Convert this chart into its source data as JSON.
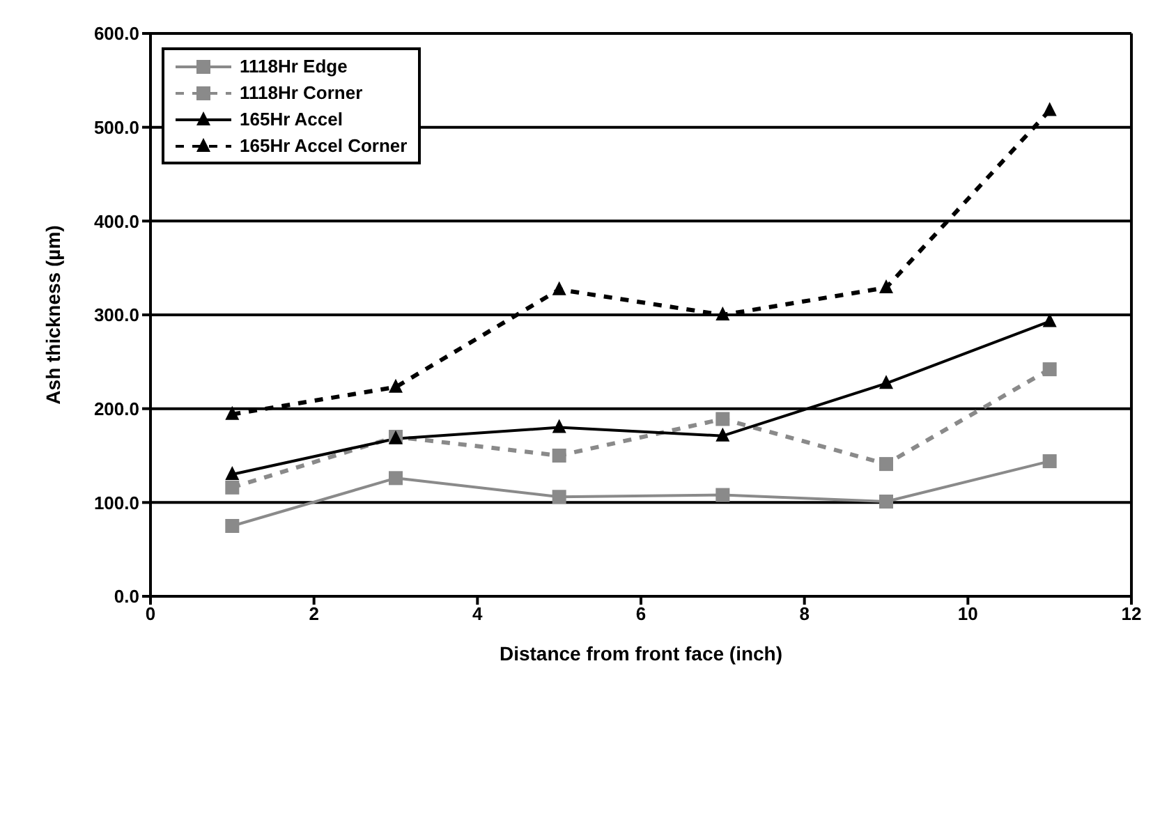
{
  "chart_data": {
    "type": "line",
    "xlabel": "Distance from front face (inch)",
    "ylabel": "Ash thickness (µm)",
    "x": [
      1,
      3,
      5,
      7,
      9,
      11
    ],
    "series": [
      {
        "name": "1118Hr Edge",
        "color": "#8a8a8a",
        "marker": "square",
        "line_style": "solid",
        "values": [
          75,
          126,
          106,
          108,
          101,
          144
        ]
      },
      {
        "name": "1118Hr Corner",
        "color": "#8a8a8a",
        "marker": "square",
        "line_style": "dashed",
        "values": [
          116,
          170,
          150,
          189,
          141,
          242
        ]
      },
      {
        "name": "165Hr Accel",
        "color": "#000000",
        "marker": "triangle",
        "line_style": "solid",
        "values": [
          130,
          168,
          180,
          171,
          227,
          293
        ]
      },
      {
        "name": "165Hr Accel Corner",
        "color": "#000000",
        "marker": "triangle",
        "line_style": "dashed",
        "values": [
          194,
          223,
          327,
          300,
          329,
          518
        ]
      }
    ],
    "xlim": [
      0,
      12
    ],
    "xticks": [
      0,
      2,
      4,
      6,
      8,
      10,
      12
    ],
    "ylim": [
      0,
      600
    ],
    "yticks": [
      {
        "value": 0,
        "label": "0.0"
      },
      {
        "value": 100,
        "label": "100.0"
      },
      {
        "value": 200,
        "label": "200.0"
      },
      {
        "value": 300,
        "label": "300.0"
      },
      {
        "value": 400,
        "label": "400.0"
      },
      {
        "value": 500,
        "label": "500.0"
      },
      {
        "value": 600,
        "label": "600.0"
      }
    ],
    "grid": "y",
    "legend": "top left"
  }
}
